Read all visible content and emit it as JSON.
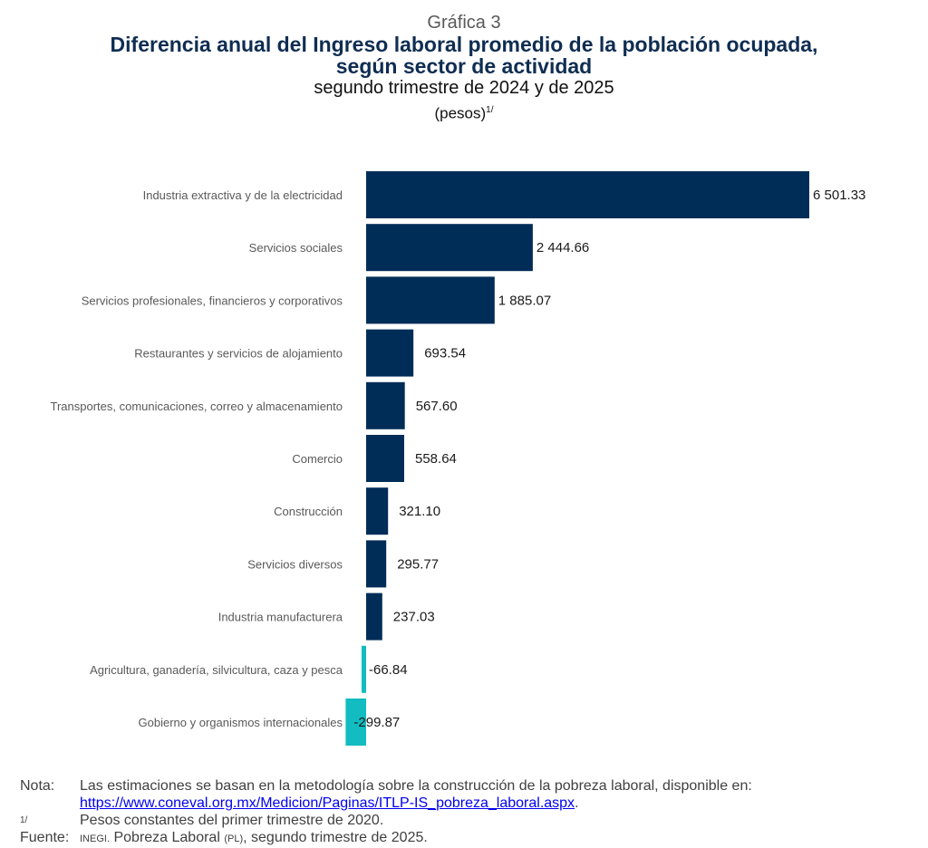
{
  "header": {
    "kicker": "Gráfica 3",
    "title_line1": "Diferencia anual del Ingreso laboral promedio de la población ocupada,",
    "title_line2": "según sector de actividad",
    "subtitle": "segundo trimestre de 2024 y de 2025",
    "units": "(pesos)",
    "units_sup": "1/"
  },
  "chart_data": {
    "type": "bar",
    "orientation": "horizontal",
    "title": "Diferencia anual del Ingreso laboral promedio de la población ocupada, según sector de actividad",
    "subtitle": "segundo trimestre de 2024 y de 2025",
    "unit": "(pesos)",
    "categories": [
      "Industria extractiva y de la electricidad",
      "Servicios sociales",
      "Servicios profesionales, financieros y corporativos",
      "Restaurantes y servicios de alojamiento",
      "Transportes, comunicaciones, correo y almacenamiento",
      "Comercio",
      "Construcción",
      "Servicios diversos",
      "Industria manufacturera",
      "Agricultura, ganadería, silvicultura, caza y pesca",
      "Gobierno y organismos internacionales"
    ],
    "values": [
      6501.33,
      2444.66,
      1885.07,
      693.54,
      567.6,
      558.64,
      321.1,
      295.77,
      237.03,
      -66.84,
      -299.87
    ],
    "value_labels": [
      "6 501.33",
      "2 444.66",
      "1 885.07",
      "693.54",
      "567.60",
      "558.64",
      "321.10",
      "295.77",
      "237.03",
      "-66.84",
      "-299.87"
    ],
    "positive_color": "#002d57",
    "negative_color": "#12bcc0",
    "grid": false,
    "legend": "none"
  },
  "notes": {
    "nota_label": "Nota:",
    "nota_text": "Las estimaciones se basan en la metodología sobre la construcción de la pobreza laboral, disponible en:",
    "nota_link": "https://www.coneval.org.mx/Medicion/Paginas/ITLP-IS_pobreza_laboral.aspx",
    "nota_link_suffix": ".",
    "footnote_label": "1/",
    "footnote_text": "Pesos constantes del primer trimestre de 2020.",
    "source_label": "Fuente:",
    "source_org": "INEGI.",
    "source_text": "Pobreza Laboral",
    "source_abbr": "(PL)",
    "source_period": ", segundo trimestre de 2025."
  }
}
